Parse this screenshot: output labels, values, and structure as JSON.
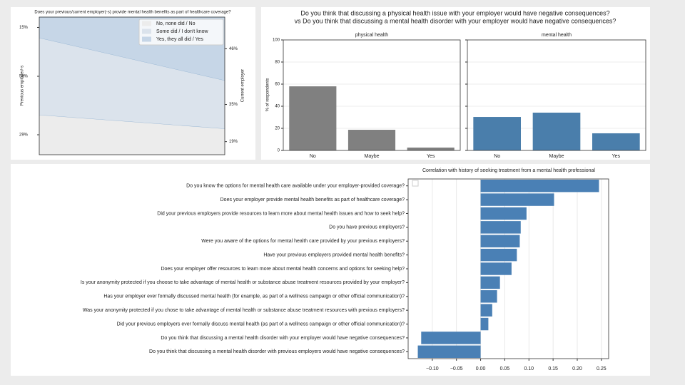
{
  "chart_data": [
    {
      "type": "area",
      "title": "Does your previous/current employer(-s) provide mental health benefits as part of healthcare coverage?",
      "ylabel": "Previous employer/-s",
      "y2label": "Current employer",
      "ylim": [
        0,
        100
      ],
      "legend": "upper right",
      "series": [
        {
          "name": "No, none did / No",
          "color": "#ececec",
          "values": [
            29,
            19
          ],
          "value_labels": [
            "29%",
            "19%"
          ]
        },
        {
          "name": "Some did / I don't know",
          "color": "#dbe3ec",
          "values": [
            56,
            35
          ],
          "value_labels": [
            "56%",
            "35%"
          ]
        },
        {
          "name": "Yes, they all did / Yes",
          "color": "#c6d6e7",
          "values": [
            15,
            46
          ],
          "value_labels": [
            "15%",
            "46%"
          ]
        }
      ]
    },
    {
      "type": "bar",
      "title": [
        "Do you think that discussing a physical health issue with your employer would have negative consequences?",
        "vs Do you think that discussing a mental health disorder with your employer would have negative consequences?"
      ],
      "ylabel": "% of respondents",
      "ylim": [
        0,
        100
      ],
      "yticks": [
        0,
        20,
        40,
        60,
        80,
        100
      ],
      "grid": true,
      "categories": [
        "No",
        "Maybe",
        "Yes"
      ],
      "panels": [
        {
          "title": "physical health",
          "color": "#808080",
          "values": [
            58,
            18.7,
            2.6
          ]
        },
        {
          "title": "mental health",
          "color": "#4a7eab",
          "values": [
            30.3,
            34.2,
            15.5
          ]
        }
      ]
    },
    {
      "type": "barh",
      "title": "Correlation with history of seeking treatment from a mental health professional",
      "categories": [
        "Do you know the options for mental health care available under your employer-provided coverage?",
        "Does your employer provide mental health benefits as part of healthcare coverage?",
        "Did your previous employers provide resources to learn more about mental health issues and how to seek help?",
        "Do you have previous employers?",
        "Were you aware of the options for mental health care provided by your previous employers?",
        "Have your previous employers provided mental health benefits?",
        "Does your employer offer resources to learn more about mental health concerns and options for seeking help?",
        "Is your anonymity protected if you choose to take advantage of mental health or substance abuse treatment resources provided by your employer?",
        "Has your employer ever formally discussed mental health (for example, as part of a wellness campaign or other official communication)?",
        "Was your anonymity protected if you chose to take advantage of mental health or substance abuse treatment resources with previous employers?",
        "Did your previous employers ever formally discuss mental health (as part of a wellness campaign or other official communication)?",
        "Do you think that discussing a mental health disorder with your employer would have negative consequences?",
        "Do you think that discussing a mental health disorder with previous employers would have negative consequences?"
      ],
      "values": [
        0.245,
        0.152,
        0.095,
        0.083,
        0.081,
        0.075,
        0.064,
        0.04,
        0.034,
        0.024,
        0.016,
        -0.123,
        -0.13
      ],
      "color": "#4a80b5",
      "xlim": [
        -0.15,
        0.265
      ],
      "xticks": [
        {
          "value": -0.1,
          "label": "−0.10"
        },
        {
          "value": -0.05,
          "label": "−0.05"
        },
        {
          "value": 0,
          "label": "0.00"
        },
        0.05,
        {
          "value": 0.1,
          "label": "0.10"
        },
        0.15,
        {
          "value": 0.2,
          "label": "0.20"
        },
        0.25
      ],
      "grid": true
    }
  ]
}
